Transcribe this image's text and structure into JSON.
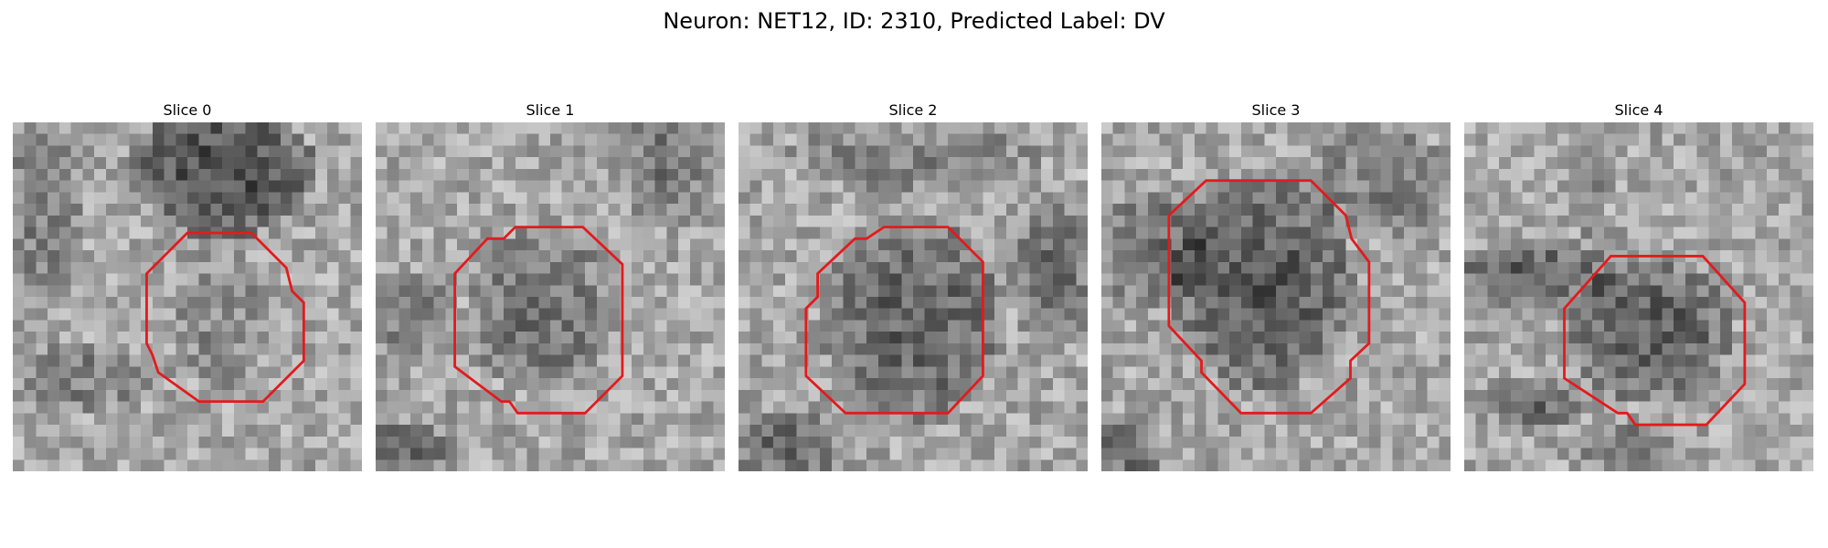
{
  "figure": {
    "title": "Neuron: NET12, ID: 2310, Predicted Label: DV",
    "outline_color": "#e41a1c",
    "colormap": "grayscale"
  },
  "slices": [
    {
      "title": "Slice 0"
    },
    {
      "title": "Slice 1"
    },
    {
      "title": "Slice 2"
    },
    {
      "title": "Slice 3"
    },
    {
      "title": "Slice 4"
    }
  ]
}
